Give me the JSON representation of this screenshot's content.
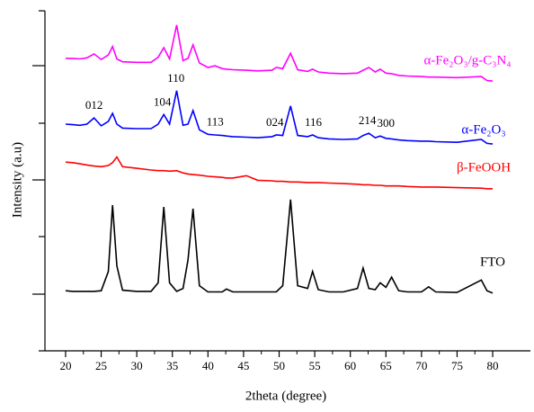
{
  "chart_data": {
    "type": "line",
    "xlabel": "2theta (degree)",
    "ylabel": "Intensity (a.u)",
    "xlim": [
      17.1,
      85.3
    ],
    "xticks": [
      20,
      25,
      30,
      35,
      40,
      45,
      50,
      55,
      60,
      65,
      70,
      75,
      80
    ],
    "ylim": [
      0,
      6
    ],
    "x": [
      20,
      21,
      22,
      23,
      24,
      25,
      26,
      26.6,
      27.2,
      28,
      30,
      32,
      33,
      33.8,
      34.6,
      35.6,
      36.5,
      37.2,
      37.9,
      38.8,
      40,
      41,
      42,
      42.6,
      43.5,
      45.4,
      47,
      49,
      49.6,
      50.5,
      51.6,
      52.6,
      54,
      54.7,
      55.5,
      57,
      59,
      61,
      61.8,
      62.6,
      63.5,
      64.2,
      65,
      65.8,
      66.8,
      68,
      70,
      71,
      72,
      75,
      78.4,
      79.2,
      80
    ],
    "series": [
      {
        "name": "FTO",
        "color": "#000000",
        "values": [
          1.06,
          1.05,
          1.05,
          1.05,
          1.05,
          1.06,
          1.4,
          2.57,
          1.5,
          1.07,
          1.05,
          1.05,
          1.2,
          2.54,
          1.2,
          1.05,
          1.1,
          1.6,
          2.51,
          1.15,
          1.04,
          1.04,
          1.04,
          1.09,
          1.04,
          1.04,
          1.04,
          1.04,
          1.04,
          1.15,
          2.67,
          1.15,
          1.1,
          1.4,
          1.08,
          1.04,
          1.04,
          1.1,
          1.46,
          1.1,
          1.08,
          1.2,
          1.12,
          1.3,
          1.06,
          1.04,
          1.04,
          1.13,
          1.04,
          1.03,
          1.25,
          1.06,
          1.02
        ]
      },
      {
        "name": "β-FeOOH",
        "color": "#ff0000",
        "values": [
          3.33,
          3.32,
          3.3,
          3.28,
          3.26,
          3.25,
          3.27,
          3.32,
          3.42,
          3.25,
          3.22,
          3.19,
          3.18,
          3.18,
          3.17,
          3.18,
          3.14,
          3.12,
          3.11,
          3.1,
          3.08,
          3.07,
          3.06,
          3.05,
          3.05,
          3.09,
          3.01,
          3.0,
          2.99,
          2.99,
          2.98,
          2.98,
          2.97,
          2.97,
          2.97,
          2.96,
          2.95,
          2.94,
          2.93,
          2.93,
          2.92,
          2.92,
          2.91,
          2.91,
          2.91,
          2.9,
          2.89,
          2.89,
          2.89,
          2.88,
          2.87,
          2.86,
          2.86
        ]
      },
      {
        "name": "α-Fe₂O₃",
        "color": "#0000ff",
        "values": [
          4.0,
          3.99,
          3.98,
          4.0,
          4.11,
          3.97,
          4.05,
          4.19,
          4.0,
          3.93,
          3.92,
          3.92,
          4.0,
          4.17,
          4.0,
          4.59,
          3.98,
          4.0,
          4.24,
          3.9,
          3.82,
          3.81,
          3.8,
          3.79,
          3.78,
          3.77,
          3.76,
          3.78,
          3.81,
          3.8,
          4.32,
          3.8,
          3.78,
          3.81,
          3.76,
          3.74,
          3.73,
          3.74,
          3.8,
          3.84,
          3.76,
          3.79,
          3.75,
          3.74,
          3.72,
          3.71,
          3.7,
          3.7,
          3.69,
          3.68,
          3.73,
          3.66,
          3.65
        ]
      },
      {
        "name": "α-Fe₂O₃/g-C₃N₄",
        "color": "#ff00ff",
        "values": [
          5.16,
          5.16,
          5.15,
          5.17,
          5.24,
          5.14,
          5.22,
          5.37,
          5.15,
          5.1,
          5.09,
          5.09,
          5.18,
          5.35,
          5.15,
          5.75,
          5.12,
          5.16,
          5.4,
          5.08,
          5.0,
          5.03,
          4.98,
          4.97,
          4.96,
          4.95,
          4.94,
          4.95,
          5.0,
          4.98,
          5.25,
          4.96,
          4.93,
          4.97,
          4.92,
          4.9,
          4.89,
          4.9,
          4.95,
          5.0,
          4.92,
          4.97,
          4.9,
          4.89,
          4.86,
          4.85,
          4.84,
          4.83,
          4.83,
          4.82,
          4.84,
          4.77,
          4.76
        ]
      }
    ],
    "annotations": [
      {
        "text": "012",
        "x": 24
      },
      {
        "text": "104",
        "x": 33.6
      },
      {
        "text": "110",
        "x": 35.5
      },
      {
        "text": "113",
        "x": 41
      },
      {
        "text": "024",
        "x": 49.4
      },
      {
        "text": "116",
        "x": 54.8
      },
      {
        "text": "214",
        "x": 62.4
      },
      {
        "text": "300",
        "x": 65
      }
    ]
  }
}
